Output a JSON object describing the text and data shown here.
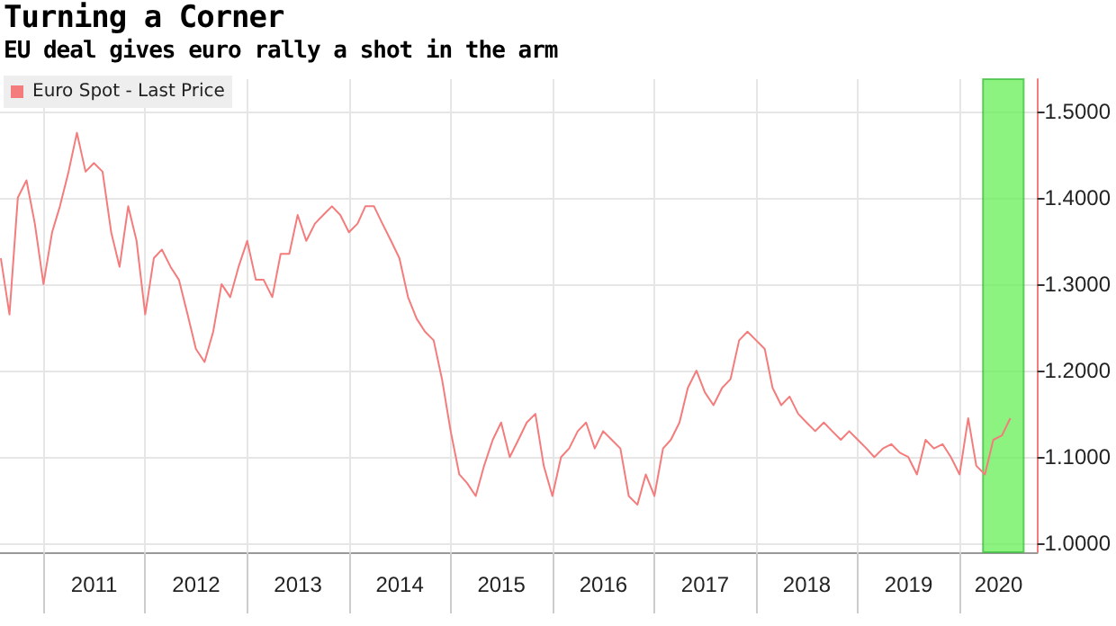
{
  "chart_data": {
    "type": "line",
    "title": "Turning a Corner",
    "subtitle": "EU deal gives euro rally a shot in the arm",
    "x": [
      "2010-08",
      "2010-09",
      "2010-10",
      "2010-11",
      "2010-12",
      "2011-01",
      "2011-02",
      "2011-03",
      "2011-04",
      "2011-05",
      "2011-06",
      "2011-07",
      "2011-08",
      "2011-09",
      "2011-10",
      "2011-11",
      "2011-12",
      "2012-01",
      "2012-02",
      "2012-03",
      "2012-04",
      "2012-05",
      "2012-06",
      "2012-07",
      "2012-08",
      "2012-09",
      "2012-10",
      "2012-11",
      "2012-12",
      "2013-01",
      "2013-02",
      "2013-03",
      "2013-04",
      "2013-05",
      "2013-06",
      "2013-07",
      "2013-08",
      "2013-09",
      "2013-10",
      "2013-11",
      "2013-12",
      "2014-01",
      "2014-02",
      "2014-03",
      "2014-04",
      "2014-05",
      "2014-06",
      "2014-07",
      "2014-08",
      "2014-09",
      "2014-10",
      "2014-11",
      "2014-12",
      "2015-01",
      "2015-02",
      "2015-03",
      "2015-04",
      "2015-05",
      "2015-06",
      "2015-07",
      "2015-08",
      "2015-09",
      "2015-10",
      "2015-11",
      "2015-12",
      "2016-01",
      "2016-02",
      "2016-03",
      "2016-04",
      "2016-05",
      "2016-06",
      "2016-07",
      "2016-08",
      "2016-09",
      "2016-10",
      "2016-11",
      "2016-12",
      "2017-01",
      "2017-02",
      "2017-03",
      "2017-04",
      "2017-05",
      "2017-06",
      "2017-07",
      "2017-08",
      "2017-09",
      "2017-10",
      "2017-11",
      "2017-12",
      "2018-01",
      "2018-02",
      "2018-03",
      "2018-04",
      "2018-05",
      "2018-06",
      "2018-07",
      "2018-08",
      "2018-09",
      "2018-10",
      "2018-11",
      "2018-12",
      "2019-01",
      "2019-02",
      "2019-03",
      "2019-04",
      "2019-05",
      "2019-06",
      "2019-07",
      "2019-08",
      "2019-09",
      "2019-10",
      "2019-11",
      "2019-12",
      "2020-01",
      "2020-02",
      "2020-03",
      "2020-04",
      "2020-05",
      "2020-06",
      "2020-07"
    ],
    "series": [
      {
        "name": "Euro Spot - Last Price",
        "color": "#f47c7c",
        "values": [
          1.33,
          1.265,
          1.4,
          1.42,
          1.37,
          1.3,
          1.36,
          1.39,
          1.43,
          1.475,
          1.43,
          1.44,
          1.43,
          1.36,
          1.32,
          1.39,
          1.35,
          1.265,
          1.33,
          1.34,
          1.32,
          1.305,
          1.265,
          1.225,
          1.21,
          1.245,
          1.3,
          1.285,
          1.32,
          1.35,
          1.305,
          1.305,
          1.285,
          1.335,
          1.335,
          1.38,
          1.35,
          1.37,
          1.38,
          1.39,
          1.38,
          1.36,
          1.37,
          1.39,
          1.39,
          1.37,
          1.35,
          1.33,
          1.285,
          1.26,
          1.245,
          1.235,
          1.19,
          1.13,
          1.08,
          1.07,
          1.055,
          1.09,
          1.12,
          1.14,
          1.1,
          1.12,
          1.14,
          1.15,
          1.09,
          1.055,
          1.1,
          1.11,
          1.13,
          1.14,
          1.11,
          1.13,
          1.12,
          1.11,
          1.055,
          1.045,
          1.08,
          1.055,
          1.11,
          1.12,
          1.14,
          1.18,
          1.2,
          1.175,
          1.16,
          1.18,
          1.19,
          1.235,
          1.245,
          1.235,
          1.225,
          1.18,
          1.16,
          1.17,
          1.15,
          1.14,
          1.13,
          1.14,
          1.13,
          1.12,
          1.13,
          1.12,
          1.11,
          1.1,
          1.11,
          1.115,
          1.105,
          1.1,
          1.08,
          1.12,
          1.11,
          1.115,
          1.1,
          1.08,
          1.145,
          1.09,
          1.08,
          1.12,
          1.125,
          1.145
        ]
      }
    ],
    "xlim": [
      "2010-07-29",
      "2020-10-06"
    ],
    "xticks": [
      {
        "value": "2011-01-01",
        "label": null
      },
      {
        "value": "2011-07-02",
        "label": "2011"
      },
      {
        "value": "2012-01-01",
        "label": null
      },
      {
        "value": "2012-07-02",
        "label": "2012"
      },
      {
        "value": "2013-01-01",
        "label": null
      },
      {
        "value": "2013-07-02",
        "label": "2013"
      },
      {
        "value": "2014-01-01",
        "label": null
      },
      {
        "value": "2014-07-02",
        "label": "2014"
      },
      {
        "value": "2015-01-01",
        "label": null
      },
      {
        "value": "2015-07-02",
        "label": "2015"
      },
      {
        "value": "2016-01-01",
        "label": null
      },
      {
        "value": "2016-07-02",
        "label": "2016"
      },
      {
        "value": "2017-01-01",
        "label": null
      },
      {
        "value": "2017-07-02",
        "label": "2017"
      },
      {
        "value": "2018-01-01",
        "label": null
      },
      {
        "value": "2018-07-02",
        "label": "2018"
      },
      {
        "value": "2019-01-01",
        "label": null
      },
      {
        "value": "2019-07-02",
        "label": "2019"
      },
      {
        "value": "2020-01-01",
        "label": null
      },
      {
        "value": "2020-05-20",
        "label": "2020"
      }
    ],
    "ylim": [
      0.99,
      1.537
    ],
    "yticks": [
      {
        "value": 1.0,
        "label": "1.0000"
      },
      {
        "value": 1.1,
        "label": "1.1000"
      },
      {
        "value": 1.2,
        "label": "1.2000"
      },
      {
        "value": 1.3,
        "label": "1.3000"
      },
      {
        "value": 1.4,
        "label": "1.4000"
      },
      {
        "value": 1.5,
        "label": "1.5000"
      }
    ],
    "bands": [
      {
        "axis": "x",
        "from": "2020-03-25",
        "to": "2020-08-18",
        "color": "#66ee55"
      }
    ],
    "grid": true,
    "legend": "top left",
    "marker": "none",
    "line_style": "solid"
  }
}
